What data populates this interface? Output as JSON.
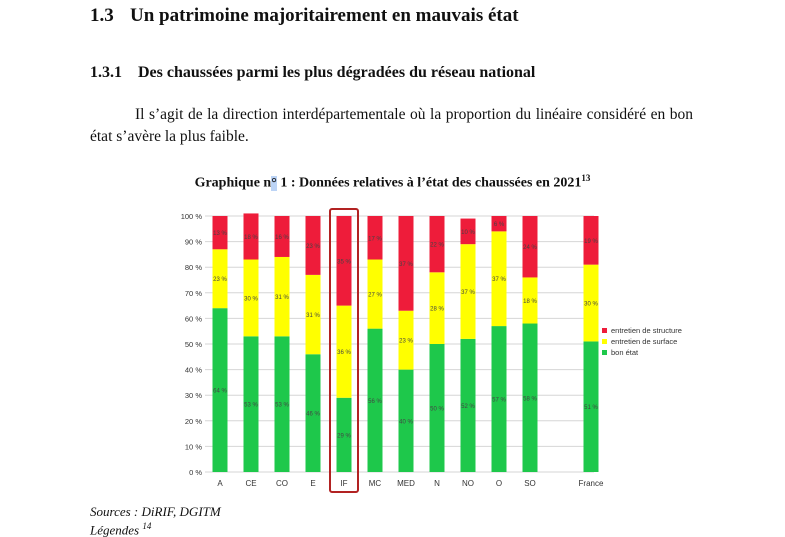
{
  "heading1": {
    "number": "1.3",
    "text": "Un patrimoine majoritairement en mauvais état"
  },
  "heading2": {
    "number": "1.3.1",
    "text": "Des chaussées parmi les plus dégradées du réseau national"
  },
  "paragraph": "Il s’agit de la direction interdépartementale où la proportion du linéaire considéré en bon état s’avère la plus faible.",
  "caption": {
    "before": "Graphique n",
    "highlight": "°",
    "after": " 1 : Données relatives à l’état des chaussées en 2021",
    "footnote": "13"
  },
  "sources": "Sources : DiRIF, DGITM",
  "legends_label": "Légendes",
  "legends_footnote": "14",
  "chart_data": {
    "type": "bar",
    "stacked": true,
    "categories": [
      "A",
      "CE",
      "CO",
      "E",
      "IF",
      "MC",
      "MED",
      "N",
      "NO",
      "O",
      "SO",
      "France"
    ],
    "highlighted_category": "IF",
    "series": [
      {
        "name": "bon état",
        "color": "#1ec84b",
        "values": [
          64,
          53,
          53,
          46,
          29,
          56,
          40,
          50,
          52,
          57,
          58,
          51
        ]
      },
      {
        "name": "entretien de surface",
        "color": "#ffff00",
        "values": [
          23,
          30,
          31,
          31,
          36,
          27,
          23,
          28,
          37,
          37,
          18,
          30
        ]
      },
      {
        "name": "entretien de structure",
        "color": "#ee1c3a",
        "values": [
          13,
          18,
          16,
          23,
          35,
          17,
          37,
          22,
          10,
          6,
          24,
          19
        ]
      }
    ],
    "ylim": [
      0,
      100
    ],
    "yticks": [
      "0 %",
      "10 %",
      "20 %",
      "30 %",
      "40 %",
      "50 %",
      "60 %",
      "70 %",
      "80 %",
      "90 %",
      "100 %"
    ],
    "legend_position": "right",
    "grid": true,
    "highlight_color": "#b22222"
  }
}
